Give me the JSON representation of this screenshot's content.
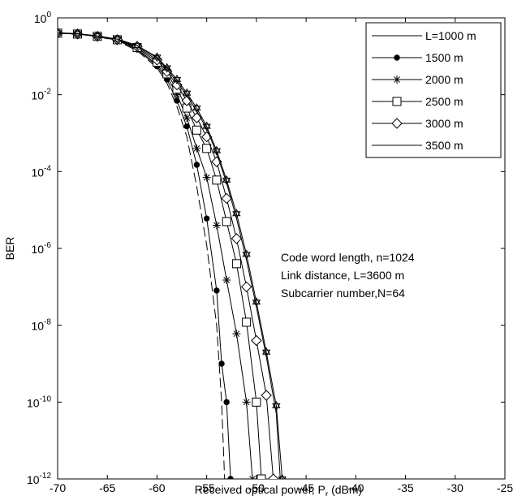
{
  "chart_data": {
    "type": "line",
    "title": "",
    "xlabel": "Received optical power, P",
    "xlabel_sub": "r",
    "xlabel_unit": " (dBm)",
    "ylabel": "BER",
    "xlim": [
      -70,
      -25
    ],
    "ylim_log10": [
      -12,
      0
    ],
    "y_scale": "log",
    "grid": false,
    "legend_position": "top-right",
    "x_ticks": [
      "-70",
      "-65",
      "-60",
      "-55",
      "-50",
      "-45",
      "-40",
      "-35",
      "-30",
      "-25"
    ],
    "y_ticks": [
      {
        "base": "10",
        "exp": "0"
      },
      {
        "base": "10",
        "exp": "-2"
      },
      {
        "base": "10",
        "exp": "-4"
      },
      {
        "base": "10",
        "exp": "-6"
      },
      {
        "base": "10",
        "exp": "-8"
      },
      {
        "base": "10",
        "exp": "-10"
      },
      {
        "base": "10",
        "exp": "-12"
      }
    ],
    "annotations": [
      "Code word length, n=1024",
      "Link distance, L=3600 m",
      "Subcarrier number,N=64"
    ],
    "legend": [
      "L=1000 m",
      "1500 m",
      "2000 m",
      "2500 m",
      "3000 m",
      "3500 m"
    ],
    "series": [
      {
        "marker": "dash",
        "points": [
          [
            -70,
            0.4
          ],
          [
            -68,
            0.38
          ],
          [
            -66,
            0.33
          ],
          [
            -64,
            0.25
          ],
          [
            -62,
            0.14
          ],
          [
            -60,
            0.05
          ],
          [
            -59,
            0.02
          ],
          [
            -58,
            0.005
          ],
          [
            -57,
            0.0008
          ],
          [
            -56,
            4e-05
          ],
          [
            -55,
            1.2e-06
          ],
          [
            -54,
            1e-08
          ],
          [
            -53.5,
            1e-10
          ],
          [
            -53.2,
            1e-12
          ]
        ]
      },
      {
        "marker": "dot",
        "points": [
          [
            -70,
            0.4
          ],
          [
            -68,
            0.38
          ],
          [
            -66,
            0.33
          ],
          [
            -64,
            0.26
          ],
          [
            -62,
            0.15
          ],
          [
            -60,
            0.055
          ],
          [
            -59,
            0.025
          ],
          [
            -58,
            0.007
          ],
          [
            -57,
            0.0015
          ],
          [
            -56,
            0.00015
          ],
          [
            -55,
            6e-06
          ],
          [
            -54,
            8e-08
          ],
          [
            -53.5,
            1e-09
          ],
          [
            -53,
            1e-10
          ],
          [
            -52.6,
            1e-12
          ]
        ]
      },
      {
        "marker": "star",
        "points": [
          [
            -70,
            0.4
          ],
          [
            -68,
            0.38
          ],
          [
            -66,
            0.33
          ],
          [
            -64,
            0.27
          ],
          [
            -62,
            0.16
          ],
          [
            -60,
            0.06
          ],
          [
            -59,
            0.03
          ],
          [
            -58,
            0.01
          ],
          [
            -57,
            0.0025
          ],
          [
            -56,
            0.0004
          ],
          [
            -55,
            7e-05
          ],
          [
            -54,
            4e-06
          ],
          [
            -53,
            1.5e-07
          ],
          [
            -52,
            6e-09
          ],
          [
            -51,
            1e-10
          ],
          [
            -50.4,
            1e-12
          ]
        ]
      },
      {
        "marker": "square",
        "points": [
          [
            -70,
            0.4
          ],
          [
            -68,
            0.38
          ],
          [
            -66,
            0.33
          ],
          [
            -64,
            0.27
          ],
          [
            -62,
            0.17
          ],
          [
            -60,
            0.07
          ],
          [
            -59,
            0.035
          ],
          [
            -58,
            0.014
          ],
          [
            -57,
            0.0045
          ],
          [
            -56,
            0.0012
          ],
          [
            -55,
            0.0004
          ],
          [
            -54,
            6e-05
          ],
          [
            -53,
            5e-06
          ],
          [
            -52,
            4e-07
          ],
          [
            -51,
            1.2e-08
          ],
          [
            -50,
            1e-10
          ],
          [
            -49.5,
            1e-12
          ]
        ]
      },
      {
        "marker": "diamond",
        "points": [
          [
            -70,
            0.4
          ],
          [
            -68,
            0.38
          ],
          [
            -66,
            0.33
          ],
          [
            -64,
            0.27
          ],
          [
            -62,
            0.18
          ],
          [
            -60,
            0.08
          ],
          [
            -59,
            0.04
          ],
          [
            -58,
            0.018
          ],
          [
            -57,
            0.007
          ],
          [
            -56,
            0.0025
          ],
          [
            -55,
            0.0008
          ],
          [
            -54,
            0.00018
          ],
          [
            -53,
            2e-05
          ],
          [
            -52,
            1.8e-06
          ],
          [
            -51,
            1e-07
          ],
          [
            -50,
            4e-09
          ],
          [
            -49,
            1.5e-10
          ],
          [
            -48.3,
            1e-12
          ]
        ]
      },
      {
        "marker": "line",
        "points": [
          [
            -70,
            0.4
          ],
          [
            -68,
            0.38
          ],
          [
            -66,
            0.33
          ],
          [
            -64,
            0.28
          ],
          [
            -62,
            0.19
          ],
          [
            -60,
            0.09
          ],
          [
            -59,
            0.045
          ],
          [
            -58,
            0.022
          ],
          [
            -57,
            0.0095
          ],
          [
            -56,
            0.0038
          ],
          [
            -55,
            0.0013
          ],
          [
            -54,
            0.0003
          ],
          [
            -53,
            5e-05
          ],
          [
            -52,
            6e-06
          ],
          [
            -51,
            5e-07
          ],
          [
            -50,
            3e-08
          ],
          [
            -49,
            1.5e-09
          ],
          [
            -48,
            5e-11
          ],
          [
            -47.6,
            1e-12
          ]
        ]
      },
      {
        "marker": "hexagram",
        "points": [
          [
            -70,
            0.41
          ],
          [
            -68,
            0.39
          ],
          [
            -66,
            0.34
          ],
          [
            -64,
            0.28
          ],
          [
            -62,
            0.19
          ],
          [
            -60,
            0.095
          ],
          [
            -59,
            0.05
          ],
          [
            -58,
            0.025
          ],
          [
            -57,
            0.011
          ],
          [
            -56,
            0.0045
          ],
          [
            -55,
            0.0015
          ],
          [
            -54,
            0.00035
          ],
          [
            -53,
            6e-05
          ],
          [
            -52,
            8e-06
          ],
          [
            -51,
            7e-07
          ],
          [
            -50,
            4e-08
          ],
          [
            -49,
            2e-09
          ],
          [
            -48,
            8e-11
          ],
          [
            -47.4,
            1e-12
          ]
        ]
      }
    ]
  }
}
